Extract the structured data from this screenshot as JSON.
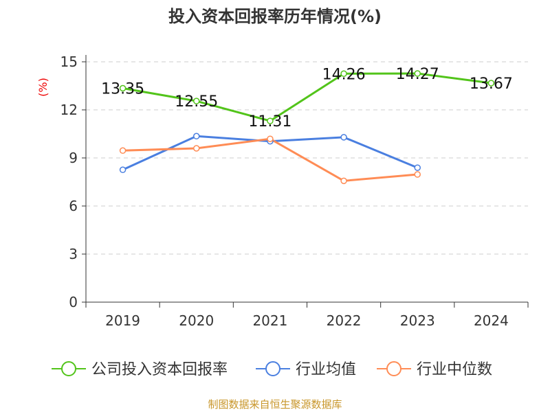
{
  "chart_data": {
    "type": "line",
    "title": "投入资本回报率历年情况(%)",
    "ylabel": "(%)",
    "xlabel": "",
    "categories": [
      "2019",
      "2020",
      "2021",
      "2022",
      "2023",
      "2024"
    ],
    "ylim": [
      0,
      15
    ],
    "yticks": [
      0,
      3,
      6,
      9,
      12,
      15
    ],
    "grid": true,
    "legend_position": "bottom",
    "series": [
      {
        "name": "公司投入资本回报率",
        "color": "#52c41a",
        "values": [
          13.35,
          12.55,
          11.31,
          14.26,
          14.27,
          13.67
        ],
        "labels": [
          "13.35",
          "12.55",
          "11.31",
          "14.26",
          "14.27",
          "13.67"
        ]
      },
      {
        "name": "行业均值",
        "color": "#4a7fe0",
        "values": [
          8.26,
          10.36,
          10.04,
          10.29,
          8.39,
          null
        ]
      },
      {
        "name": "行业中位数",
        "color": "#ff8c55",
        "values": [
          9.46,
          9.6,
          10.19,
          7.57,
          7.97,
          null
        ]
      }
    ]
  },
  "footer": {
    "source": "制图数据来自恒生聚源数据库",
    "source_color": "#c8962a"
  }
}
